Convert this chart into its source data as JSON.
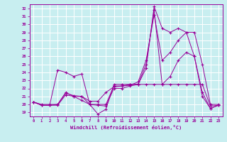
{
  "xlabel": "Windchill (Refroidissement éolien,°C)",
  "ylabel": "",
  "background_color": "#c8eef0",
  "line_color": "#990099",
  "grid_color": "#ffffff",
  "xlim": [
    -0.5,
    23.5
  ],
  "ylim": [
    18.5,
    32.5
  ],
  "yticks": [
    19,
    20,
    21,
    22,
    23,
    24,
    25,
    26,
    27,
    28,
    29,
    30,
    31,
    32
  ],
  "xticks": [
    0,
    1,
    2,
    3,
    4,
    5,
    6,
    7,
    8,
    9,
    10,
    11,
    12,
    13,
    14,
    15,
    16,
    17,
    18,
    19,
    20,
    21,
    22,
    23
  ],
  "series": [
    [
      20.3,
      19.9,
      19.9,
      24.3,
      24.0,
      23.5,
      23.8,
      20.0,
      18.8,
      19.4,
      22.5,
      22.5,
      22.5,
      22.5,
      24.5,
      32.2,
      29.5,
      29.0,
      29.5,
      29.0,
      26.0,
      21.0,
      19.5,
      19.9
    ],
    [
      20.3,
      19.9,
      19.9,
      19.9,
      21.2,
      21.0,
      20.5,
      20.0,
      19.9,
      19.8,
      22.0,
      22.0,
      22.3,
      22.5,
      22.5,
      22.5,
      22.5,
      22.5,
      22.5,
      22.5,
      22.5,
      22.5,
      19.8,
      19.9
    ],
    [
      20.3,
      19.9,
      19.9,
      20.0,
      21.4,
      21.1,
      21.0,
      20.4,
      20.4,
      21.5,
      22.2,
      22.3,
      22.4,
      22.8,
      25.5,
      31.2,
      25.5,
      26.5,
      28.0,
      29.0,
      29.0,
      25.0,
      20.0,
      20.0
    ],
    [
      20.3,
      20.0,
      20.0,
      20.0,
      21.5,
      21.0,
      21.0,
      20.0,
      20.0,
      20.0,
      22.3,
      22.3,
      22.5,
      22.5,
      25.0,
      31.8,
      22.5,
      23.5,
      25.5,
      26.5,
      26.0,
      21.5,
      19.5,
      19.9
    ]
  ]
}
